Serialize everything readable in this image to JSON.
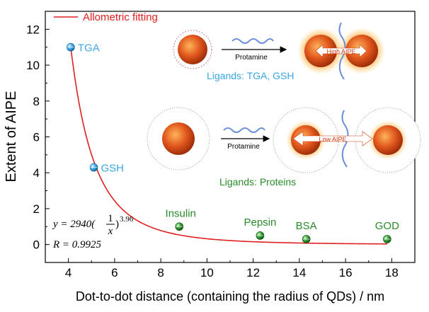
{
  "chart_data": {
    "type": "scatter",
    "title": "",
    "xlabel": "Dot-to-dot distance (containing the radius of QDs) / nm",
    "ylabel": "Extent of AIPE",
    "xlim": [
      3,
      19
    ],
    "ylim": [
      -1,
      13
    ],
    "x_ticks": [
      4,
      6,
      8,
      10,
      12,
      14,
      16,
      18
    ],
    "y_ticks": [
      0,
      2,
      4,
      6,
      8,
      10,
      12
    ],
    "grid": false,
    "legend": {
      "position": "top-left",
      "label": "Allometric fitting"
    },
    "points": [
      {
        "label": "TGA",
        "x": 4.1,
        "y": 11.0,
        "color": "#3aa6e0"
      },
      {
        "label": "GSH",
        "x": 5.1,
        "y": 4.3,
        "color": "#3aa6e0"
      },
      {
        "label": "Insulin",
        "x": 8.8,
        "y": 1.0,
        "color": "#2a8a2a"
      },
      {
        "label": "Pepsin",
        "x": 12.3,
        "y": 0.5,
        "color": "#2a8a2a"
      },
      {
        "label": "BSA",
        "x": 14.3,
        "y": 0.3,
        "color": "#2a8a2a"
      },
      {
        "label": "GOD",
        "x": 17.8,
        "y": 0.3,
        "color": "#2a8a2a"
      }
    ],
    "fit": {
      "a": 2940,
      "b": 3.96,
      "x_range": [
        4.1,
        17.8
      ],
      "color": "#e02020"
    },
    "equation": {
      "y_text": "y = 2940(",
      "frac_num": "1",
      "frac_den": "x",
      "tail": ")",
      "exp": "3.96",
      "r_text": "R = 0.9925"
    }
  },
  "inset": {
    "top_arrow_label": "Protamine",
    "top_badge": "High AIPE",
    "top_ligands": "Ligands: TGA, GSH",
    "bottom_arrow_label": "Protamine",
    "bottom_badge": "Low AIPE",
    "bottom_ligands": "Ligands: Proteins"
  },
  "colors": {
    "fit": "#e02020",
    "blue": "#3aa6e0",
    "green": "#2a8a2a",
    "axis": "#000000"
  }
}
